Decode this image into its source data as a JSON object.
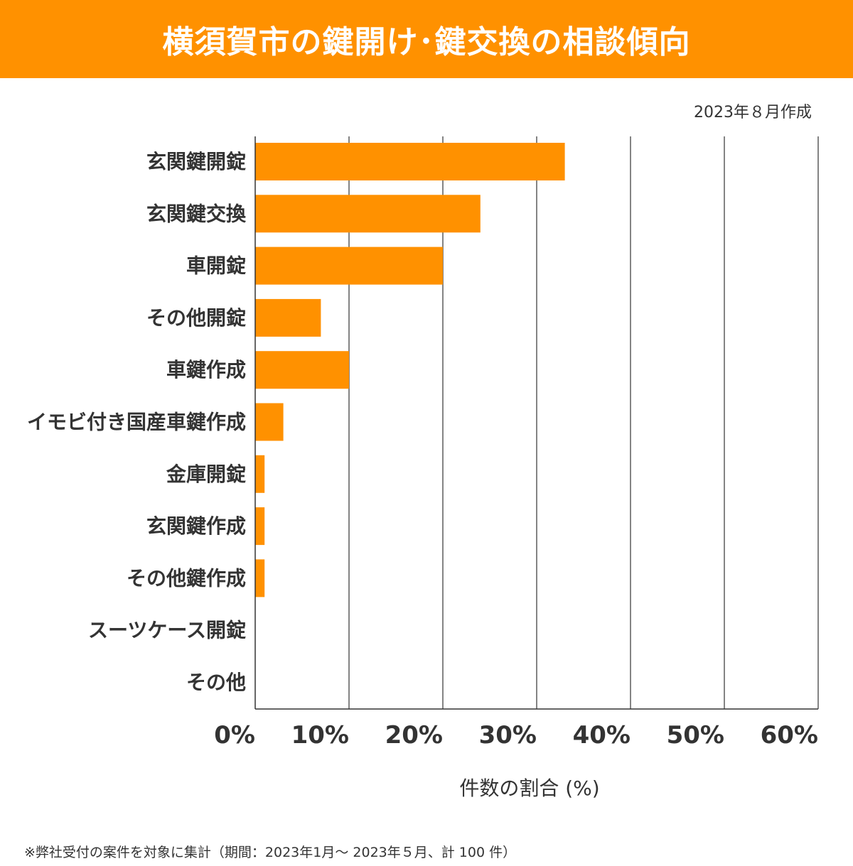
{
  "header": {
    "title": "横須賀市の鍵開け･鍵交換の相談傾向",
    "created": "2023年８月作成"
  },
  "colors": {
    "accent": "#ff9100",
    "bar": "#ff9100",
    "text": "#333333",
    "grid": "#333333"
  },
  "chart_data": {
    "type": "bar",
    "orientation": "horizontal",
    "categories": [
      "玄関鍵開錠",
      "玄関鍵交換",
      "車開錠",
      "その他開錠",
      "車鍵作成",
      "イモビ付き国産車鍵作成",
      "金庫開錠",
      "玄関鍵作成",
      "その他鍵作成",
      "スーツケース開錠",
      "その他"
    ],
    "values": [
      33,
      24,
      20,
      7,
      10,
      3,
      1,
      1,
      1,
      0,
      0
    ],
    "x_ticks": [
      0,
      10,
      20,
      30,
      40,
      50,
      60
    ],
    "x_tick_labels": [
      "0%",
      "10%",
      "20%",
      "30%",
      "40%",
      "50%",
      "60%"
    ],
    "xlim": [
      0,
      60
    ],
    "xlabel": "件数の割合 (%)",
    "ylabel": "",
    "grid": "vertical",
    "legend": "none"
  },
  "footnote": "※弊社受付の案件を対象に集計（期間：2023年1月～ 2023年５月、計 100 件）"
}
